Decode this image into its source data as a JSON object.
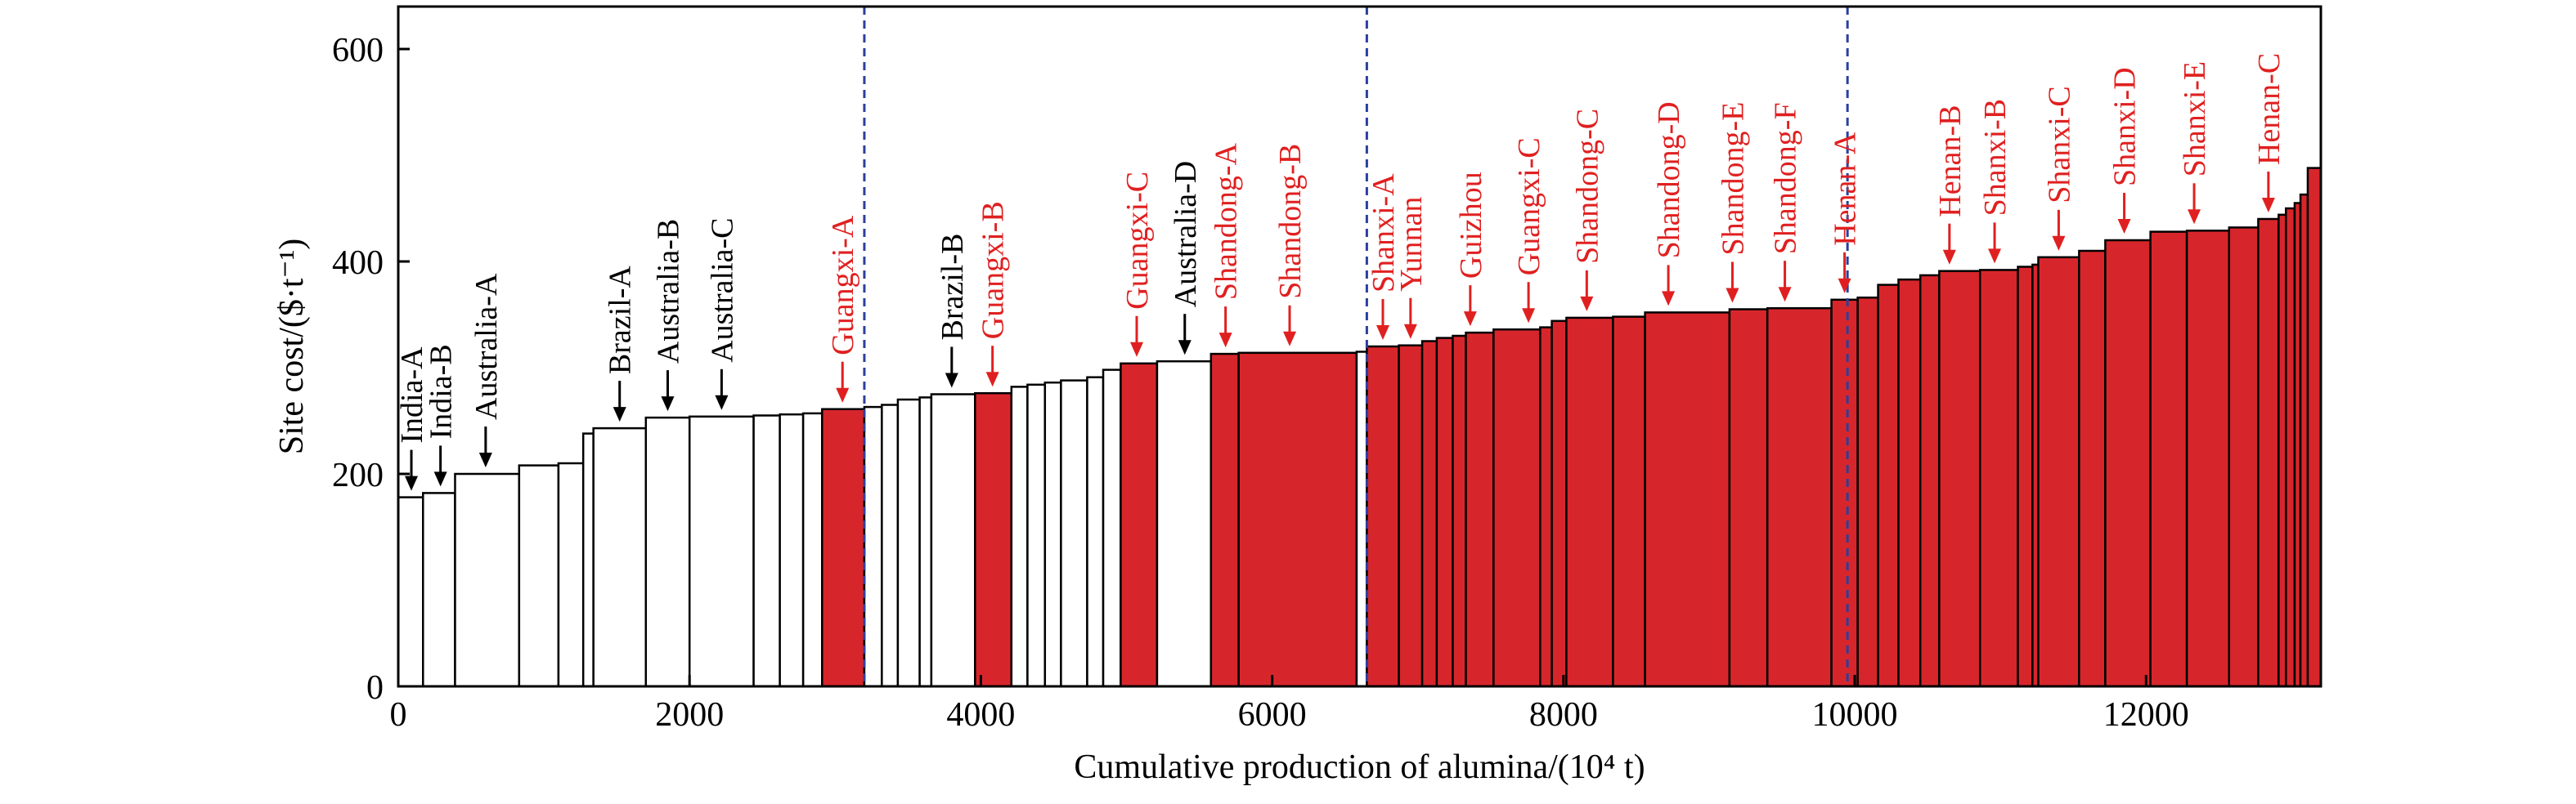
{
  "chart_data": {
    "type": "bar",
    "subtype": "cost-curve (variable-width bars)",
    "xlabel": "Cumulative production of alumina/(10⁴ t)",
    "ylabel": "Site cost/($·t⁻¹)",
    "xlim": [
      0,
      13200
    ],
    "ylim": [
      0,
      640
    ],
    "xticks": [
      0,
      2000,
      4000,
      6000,
      8000,
      10000,
      12000
    ],
    "yticks": [
      0,
      200,
      400,
      600
    ],
    "grid": false,
    "dashed_lines_x": [
      3200,
      6650,
      9950
    ],
    "colors": {
      "china": "#d7262b",
      "other": "#ffffff",
      "china_label": "#e02020",
      "other_label": "#000000",
      "divider": "#2b3f9e"
    },
    "bars": [
      {
        "x0": 0,
        "x1": 170,
        "cost": 178,
        "china": false
      },
      {
        "x0": 170,
        "x1": 390,
        "cost": 182,
        "china": false
      },
      {
        "x0": 390,
        "x1": 830,
        "cost": 200,
        "china": false
      },
      {
        "x0": 830,
        "x1": 1100,
        "cost": 208,
        "china": false
      },
      {
        "x0": 1100,
        "x1": 1270,
        "cost": 210,
        "china": false
      },
      {
        "x0": 1270,
        "x1": 1340,
        "cost": 238,
        "china": false
      },
      {
        "x0": 1340,
        "x1": 1700,
        "cost": 243,
        "china": false
      },
      {
        "x0": 1700,
        "x1": 2000,
        "cost": 253,
        "china": false
      },
      {
        "x0": 2000,
        "x1": 2440,
        "cost": 254,
        "china": false
      },
      {
        "x0": 2440,
        "x1": 2620,
        "cost": 255,
        "china": false
      },
      {
        "x0": 2620,
        "x1": 2780,
        "cost": 256,
        "china": false
      },
      {
        "x0": 2780,
        "x1": 2910,
        "cost": 257,
        "china": false
      },
      {
        "x0": 2910,
        "x1": 3200,
        "cost": 261,
        "china": true
      },
      {
        "x0": 3200,
        "x1": 3320,
        "cost": 263,
        "china": false
      },
      {
        "x0": 3320,
        "x1": 3430,
        "cost": 265,
        "china": false
      },
      {
        "x0": 3430,
        "x1": 3580,
        "cost": 270,
        "china": false
      },
      {
        "x0": 3580,
        "x1": 3660,
        "cost": 272,
        "china": false
      },
      {
        "x0": 3660,
        "x1": 3960,
        "cost": 275,
        "china": false
      },
      {
        "x0": 3960,
        "x1": 4210,
        "cost": 276,
        "china": true
      },
      {
        "x0": 4210,
        "x1": 4320,
        "cost": 282,
        "china": false
      },
      {
        "x0": 4320,
        "x1": 4440,
        "cost": 284,
        "china": false
      },
      {
        "x0": 4440,
        "x1": 4550,
        "cost": 286,
        "china": false
      },
      {
        "x0": 4550,
        "x1": 4730,
        "cost": 288,
        "china": false
      },
      {
        "x0": 4730,
        "x1": 4840,
        "cost": 291,
        "china": false
      },
      {
        "x0": 4840,
        "x1": 4960,
        "cost": 298,
        "china": false
      },
      {
        "x0": 4960,
        "x1": 5210,
        "cost": 304,
        "china": true
      },
      {
        "x0": 5210,
        "x1": 5580,
        "cost": 306,
        "china": false
      },
      {
        "x0": 5580,
        "x1": 5770,
        "cost": 313,
        "china": true
      },
      {
        "x0": 5770,
        "x1": 6580,
        "cost": 314,
        "china": true
      },
      {
        "x0": 6580,
        "x1": 6650,
        "cost": 315,
        "china": false
      },
      {
        "x0": 6650,
        "x1": 6870,
        "cost": 320,
        "china": true
      },
      {
        "x0": 6870,
        "x1": 7030,
        "cost": 321,
        "china": true
      },
      {
        "x0": 7030,
        "x1": 7130,
        "cost": 325,
        "china": true
      },
      {
        "x0": 7130,
        "x1": 7240,
        "cost": 328,
        "china": true
      },
      {
        "x0": 7240,
        "x1": 7330,
        "cost": 330,
        "china": true
      },
      {
        "x0": 7330,
        "x1": 7520,
        "cost": 333,
        "china": true
      },
      {
        "x0": 7520,
        "x1": 7840,
        "cost": 336,
        "china": true
      },
      {
        "x0": 7840,
        "x1": 7920,
        "cost": 338,
        "china": true
      },
      {
        "x0": 7920,
        "x1": 8020,
        "cost": 344,
        "china": true
      },
      {
        "x0": 8020,
        "x1": 8340,
        "cost": 347,
        "china": true
      },
      {
        "x0": 8340,
        "x1": 8560,
        "cost": 348,
        "china": true
      },
      {
        "x0": 8560,
        "x1": 9140,
        "cost": 352,
        "china": true
      },
      {
        "x0": 9140,
        "x1": 9400,
        "cost": 355,
        "china": true
      },
      {
        "x0": 9400,
        "x1": 9840,
        "cost": 356,
        "china": true
      },
      {
        "x0": 9840,
        "x1": 10020,
        "cost": 364,
        "china": true
      },
      {
        "x0": 10020,
        "x1": 10160,
        "cost": 366,
        "china": true
      },
      {
        "x0": 10160,
        "x1": 10300,
        "cost": 378,
        "china": true
      },
      {
        "x0": 10300,
        "x1": 10450,
        "cost": 383,
        "china": true
      },
      {
        "x0": 10450,
        "x1": 10580,
        "cost": 387,
        "china": true
      },
      {
        "x0": 10580,
        "x1": 10860,
        "cost": 391,
        "china": true
      },
      {
        "x0": 10860,
        "x1": 11120,
        "cost": 392,
        "china": true
      },
      {
        "x0": 11120,
        "x1": 11220,
        "cost": 395,
        "china": true
      },
      {
        "x0": 11220,
        "x1": 11260,
        "cost": 397,
        "china": true
      },
      {
        "x0": 11260,
        "x1": 11540,
        "cost": 404,
        "china": true
      },
      {
        "x0": 11540,
        "x1": 11720,
        "cost": 410,
        "china": true
      },
      {
        "x0": 11720,
        "x1": 12030,
        "cost": 420,
        "china": true
      },
      {
        "x0": 12030,
        "x1": 12280,
        "cost": 428,
        "china": true
      },
      {
        "x0": 12280,
        "x1": 12570,
        "cost": 429,
        "china": true
      },
      {
        "x0": 12570,
        "x1": 12770,
        "cost": 432,
        "china": true
      },
      {
        "x0": 12770,
        "x1": 12910,
        "cost": 440,
        "china": true
      },
      {
        "x0": 12910,
        "x1": 12960,
        "cost": 444,
        "china": true
      },
      {
        "x0": 12960,
        "x1": 13020,
        "cost": 450,
        "china": true
      },
      {
        "x0": 13020,
        "x1": 13060,
        "cost": 455,
        "china": true
      },
      {
        "x0": 13060,
        "x1": 13110,
        "cost": 463,
        "china": true
      },
      {
        "x0": 13110,
        "x1": 13200,
        "cost": 488,
        "china": true
      }
    ],
    "annotations": [
      {
        "text": "India-A",
        "x": 90,
        "y": 178,
        "china": false
      },
      {
        "text": "India-B",
        "x": 290,
        "y": 182,
        "china": false
      },
      {
        "text": "Australia-A",
        "x": 600,
        "y": 200,
        "china": false
      },
      {
        "text": "Brazil-A",
        "x": 1520,
        "y": 243,
        "china": false
      },
      {
        "text": "Australia-B",
        "x": 1850,
        "y": 253,
        "china": false
      },
      {
        "text": "Australia-C",
        "x": 2220,
        "y": 254,
        "china": false
      },
      {
        "text": "Guangxi-A",
        "x": 3050,
        "y": 261,
        "china": true
      },
      {
        "text": "Brazil-B",
        "x": 3800,
        "y": 275,
        "china": false
      },
      {
        "text": "Guangxi-B",
        "x": 4080,
        "y": 276,
        "china": true
      },
      {
        "text": "Guangxi-C",
        "x": 5070,
        "y": 304,
        "china": true
      },
      {
        "text": "Australia-D",
        "x": 5400,
        "y": 306,
        "china": false
      },
      {
        "text": "Shandong-A",
        "x": 5680,
        "y": 313,
        "china": true
      },
      {
        "text": "Shandong-B",
        "x": 6120,
        "y": 314,
        "china": true
      },
      {
        "text": "Shanxi-A",
        "x": 6760,
        "y": 320,
        "china": true
      },
      {
        "text": "Yunnan",
        "x": 6950,
        "y": 321,
        "china": true
      },
      {
        "text": "Guizhou",
        "x": 7360,
        "y": 333,
        "china": true
      },
      {
        "text": "Guangxi-C",
        "x": 7760,
        "y": 336,
        "china": true
      },
      {
        "text": "Shandong-C",
        "x": 8160,
        "y": 347,
        "china": true
      },
      {
        "text": "Shandong-D",
        "x": 8720,
        "y": 352,
        "china": true
      },
      {
        "text": "Shandong-E",
        "x": 9160,
        "y": 355,
        "china": true
      },
      {
        "text": "Shandong-F",
        "x": 9520,
        "y": 356,
        "china": true
      },
      {
        "text": "Henan-A",
        "x": 9930,
        "y": 364,
        "china": true
      },
      {
        "text": "Henan-B",
        "x": 10650,
        "y": 391,
        "china": true
      },
      {
        "text": "Shanxi-B",
        "x": 10960,
        "y": 392,
        "china": true
      },
      {
        "text": "Shanxi-C",
        "x": 11400,
        "y": 404,
        "china": true
      },
      {
        "text": "Shanxi-D",
        "x": 11850,
        "y": 420,
        "china": true
      },
      {
        "text": "Shanxi-E",
        "x": 12330,
        "y": 429,
        "china": true
      },
      {
        "text": "Henan-C",
        "x": 12840,
        "y": 440,
        "china": true
      }
    ]
  }
}
